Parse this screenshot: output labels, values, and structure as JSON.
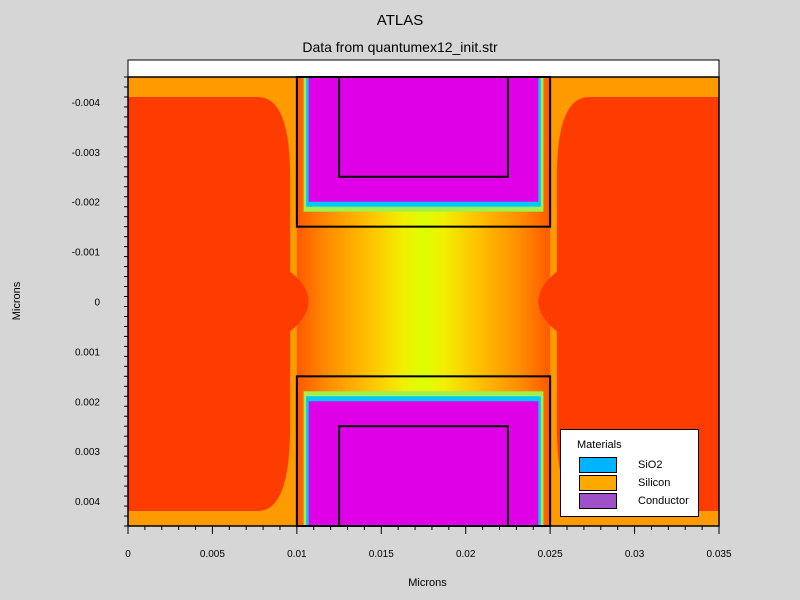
{
  "chart_data": {
    "type": "heatmap",
    "title": "ATLAS",
    "subtitle": "Data from quantumex12_init.str",
    "xlabel": "Microns",
    "ylabel": "Microns",
    "xlim": [
      0,
      0.035
    ],
    "ylim": [
      -0.0045,
      0.0045
    ],
    "y_inverted": true,
    "x_ticks": [
      0,
      0.005,
      0.01,
      0.015,
      0.02,
      0.025,
      0.03,
      0.035
    ],
    "x_tick_labels": [
      "0",
      "0.005",
      "0.01",
      "0.015",
      "0.02",
      "0.025",
      "0.03",
      "0.035"
    ],
    "y_ticks": [
      -0.004,
      -0.003,
      -0.002,
      -0.001,
      0,
      0.001,
      0.002,
      0.003,
      0.004
    ],
    "y_tick_labels": [
      "-0.004",
      "-0.003",
      "-0.002",
      "-0.001",
      "0",
      "0.001",
      "0.002",
      "0.003",
      "0.004"
    ],
    "structure": {
      "outer_box": [
        0,
        0.035,
        -0.0045,
        0.0045
      ],
      "top_gate_oxide": [
        0.01,
        0.025,
        -0.0045,
        -0.0015
      ],
      "top_gate_conductor": [
        0.0107,
        0.0243,
        -0.0045,
        -0.002
      ],
      "top_gate_inner": [
        0.0125,
        0.0225,
        -0.0045,
        -0.0025
      ],
      "bottom_gate_oxide": [
        0.01,
        0.025,
        0.0015,
        0.0045
      ],
      "bottom_gate_conductor": [
        0.0107,
        0.0243,
        0.002,
        0.0045
      ],
      "bottom_gate_inner": [
        0.0125,
        0.0225,
        0.0025,
        0.0045
      ],
      "top_white_band": [
        0,
        0.035,
        -0.0048,
        -0.0045
      ]
    },
    "legend": {
      "title": "Materials",
      "position": "bottom-right",
      "items": [
        {
          "label": "SiO2",
          "color": "#00b4ff"
        },
        {
          "label": "Silicon",
          "color": "#ffa800"
        },
        {
          "label": "Conductor",
          "color": "#a050c8"
        }
      ]
    },
    "colors": {
      "conductor_fill": "#e000e8",
      "field_high": "#ff3c00",
      "field_mid": "#ff9a00",
      "field_low": "#dcff00",
      "background": "#d6d6d6"
    }
  }
}
